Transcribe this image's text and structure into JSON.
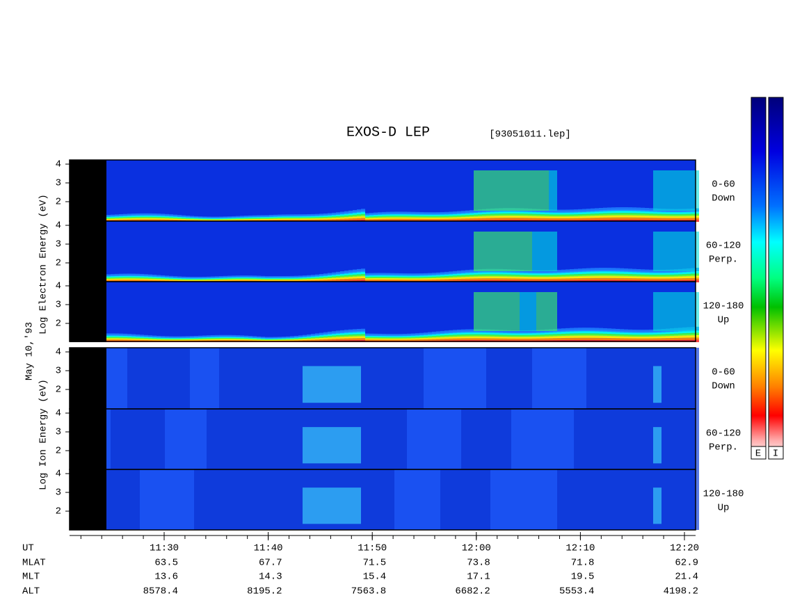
{
  "title": "EXOS-D LEP",
  "file_name": "[93051011.lep]",
  "date_label": "May 10,'93",
  "electron_axis_label": "Log Electron Energy (eV)",
  "ion_axis_label": "Log Ion Energy (eV)",
  "energy_ticks": [
    4,
    3,
    2
  ],
  "pitch_angle_labels": [
    {
      "range": "0-60",
      "direction": "Down"
    },
    {
      "range": "60-120",
      "direction": "Perp."
    },
    {
      "range": "120-180",
      "direction": "Up"
    }
  ],
  "orbit_table": {
    "row_labels": [
      "UT",
      "MLAT",
      "MLT",
      "ALT"
    ],
    "UT": [
      "11:30",
      "11:40",
      "11:50",
      "12:00",
      "12:10",
      "12:20"
    ],
    "MLAT": [
      63.5,
      67.7,
      71.5,
      73.8,
      71.8,
      62.9
    ],
    "MLT": [
      13.6,
      14.3,
      15.4,
      17.1,
      19.5,
      21.4
    ],
    "ALT": [
      8578.4,
      8195.2,
      7563.8,
      6682.2,
      5553.4,
      4198.2
    ]
  },
  "colorbar_labels": [
    "E",
    "I"
  ]
}
